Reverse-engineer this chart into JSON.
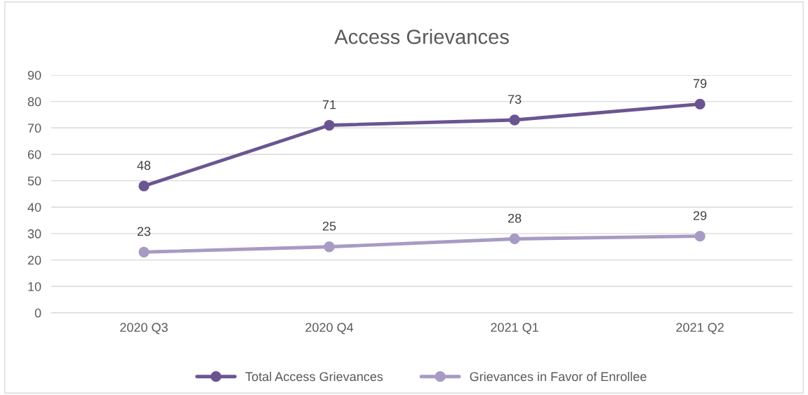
{
  "chart_data": {
    "type": "line",
    "title": "Access Grievances",
    "categories": [
      "2020 Q3",
      "2020 Q4",
      "2021 Q1",
      "2021 Q2"
    ],
    "series": [
      {
        "name": "Total Access Grievances",
        "color": "#6b5591",
        "values": [
          48,
          71,
          73,
          79
        ]
      },
      {
        "name": "Grievances in Favor of Enrollee",
        "color": "#a89bc3",
        "values": [
          23,
          25,
          28,
          29
        ]
      }
    ],
    "ylim": [
      0,
      90
    ],
    "yticks": [
      0,
      10,
      20,
      30,
      40,
      50,
      60,
      70,
      80,
      90
    ],
    "grid": "y",
    "legend": "bottom",
    "marker": "circle",
    "line_style": "solid",
    "data_labels": true
  }
}
